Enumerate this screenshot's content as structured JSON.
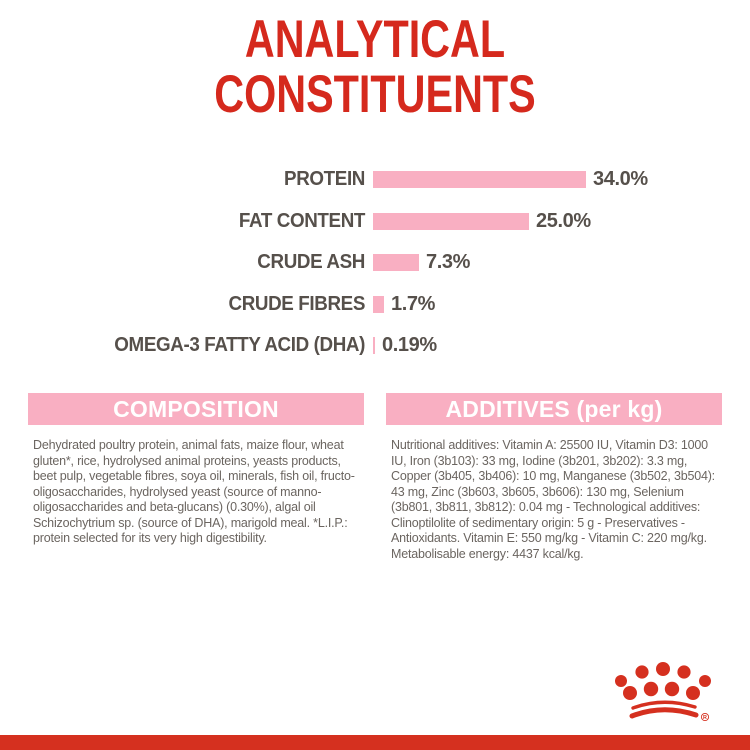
{
  "title": {
    "line1": "ANALYTICAL",
    "line2": "CONSTITUENTS"
  },
  "chart_data": {
    "type": "bar",
    "orientation": "horizontal",
    "title": "ANALYTICAL CONSTITUENTS",
    "categories": [
      "PROTEIN",
      "FAT CONTENT",
      "CRUDE ASH",
      "CRUDE FIBRES",
      "OMEGA-3 FATTY ACID (DHA)"
    ],
    "values": [
      34.0,
      25.0,
      7.3,
      1.7,
      0.19
    ],
    "value_labels": [
      "34.0%",
      "25.0%",
      "7.3%",
      "1.7%",
      "0.19%"
    ],
    "unit": "%",
    "xlim": [
      0,
      36
    ],
    "grid": false,
    "legend": false,
    "bar_color": "#F9AFC2",
    "label_color": "#56504B"
  },
  "sections": {
    "composition": {
      "header": "COMPOSITION",
      "body": "Dehydrated poultry protein, animal fats, maize flour, wheat gluten*, rice, hydrolysed animal proteins, yeasts products, beet pulp, vegetable fibres, soya oil, minerals, fish oil, fructo-oligosaccharides, hydrolysed yeast (source of manno-oligosaccharides and beta-glucans) (0.30%), algal oil Schizochytrium sp. (source of DHA), marigold meal. *L.I.P.: protein selected for its very high digestibility."
    },
    "additives": {
      "header": "ADDITIVES (per kg)",
      "body": "Nutritional additives: Vitamin A: 25500 IU, Vitamin D3: 1000 IU, Iron (3b103): 33 mg, Iodine (3b201, 3b202): 3.3 mg, Copper (3b405, 3b406): 10 mg, Manganese (3b502, 3b504): 43 mg, Zinc (3b603, 3b605, 3b606): 130 mg, Selenium (3b801, 3b811, 3b812): 0.04 mg - Technological additives: Clinoptilolite of sedimentary origin: 5 g - Preservatives - Antioxidants. Vitamin E: 550 mg/kg - Vitamin C: 220 mg/kg. Metabolisable energy: 4437 kcal/kg."
    }
  },
  "branding": {
    "logo": "royal-canin-crown",
    "brand_red": "#D5291D",
    "accent_pink": "#F9AFC2"
  }
}
